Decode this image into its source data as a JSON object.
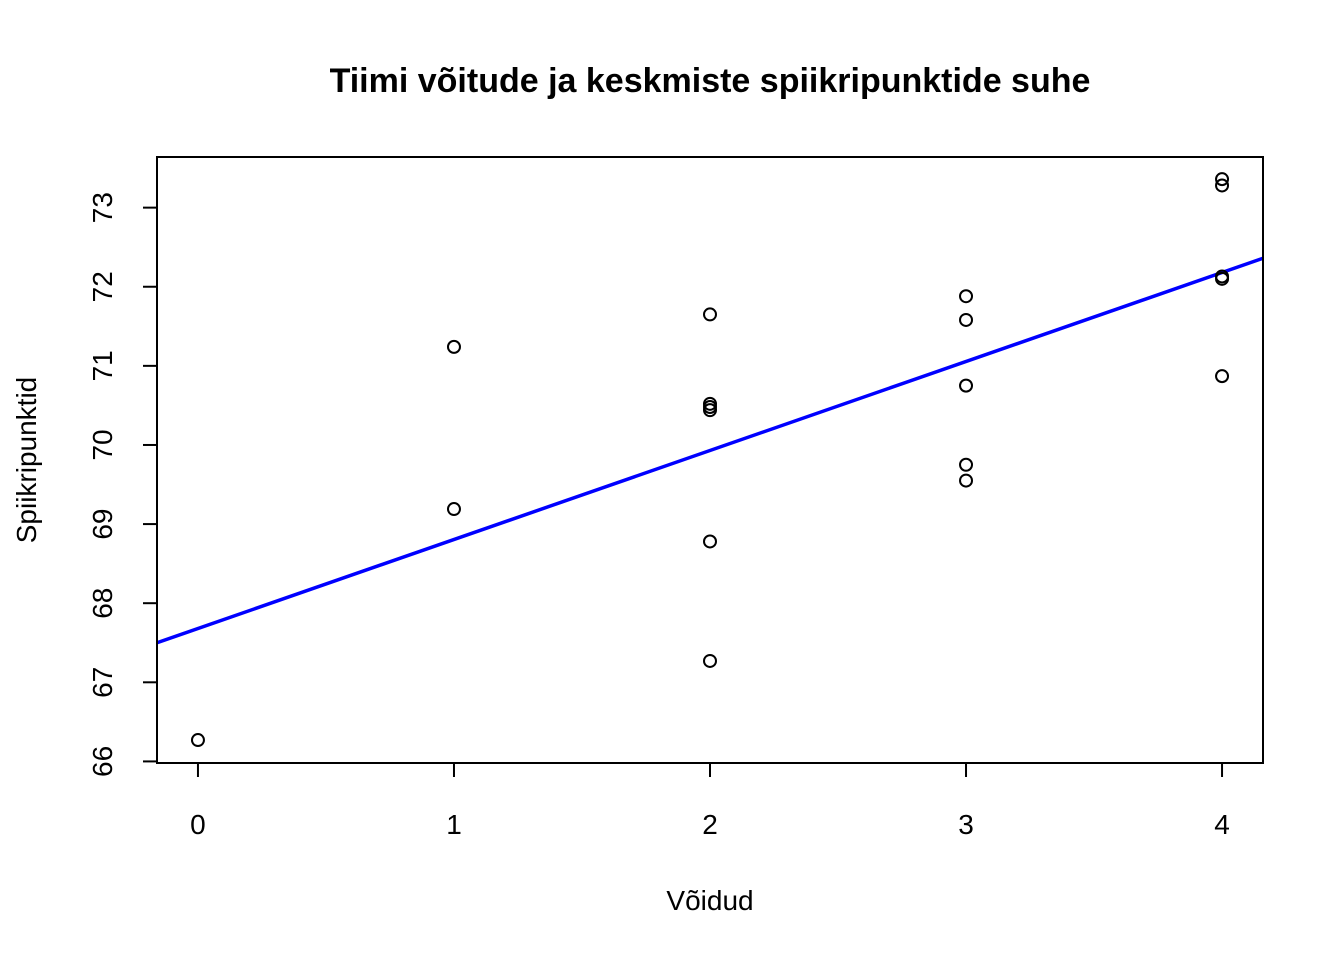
{
  "chart_data": {
    "type": "scatter",
    "title": "Tiimi võitude ja keskmiste spiikripunktide suhe",
    "xlabel": "Võidud",
    "ylabel": "Spiikripunktid",
    "xlim": [
      -0.16,
      4.16
    ],
    "ylim": [
      65.98,
      73.64
    ],
    "x_ticks": [
      "0",
      "1",
      "2",
      "3",
      "4"
    ],
    "y_ticks": [
      "66",
      "67",
      "68",
      "69",
      "70",
      "71",
      "72",
      "73"
    ],
    "grid": false,
    "legend": "none",
    "points": [
      {
        "x": 0,
        "y": 66.27
      },
      {
        "x": 1,
        "y": 71.24
      },
      {
        "x": 1,
        "y": 69.19
      },
      {
        "x": 2,
        "y": 71.65
      },
      {
        "x": 2,
        "y": 70.52
      },
      {
        "x": 2,
        "y": 70.48
      },
      {
        "x": 2,
        "y": 70.44
      },
      {
        "x": 2,
        "y": 68.78
      },
      {
        "x": 2,
        "y": 67.27
      },
      {
        "x": 3,
        "y": 71.88
      },
      {
        "x": 3,
        "y": 71.58
      },
      {
        "x": 3,
        "y": 70.75
      },
      {
        "x": 3,
        "y": 69.75
      },
      {
        "x": 3,
        "y": 69.55
      },
      {
        "x": 4,
        "y": 73.36
      },
      {
        "x": 4,
        "y": 73.28
      },
      {
        "x": 4,
        "y": 72.13
      },
      {
        "x": 4,
        "y": 72.1
      },
      {
        "x": 4,
        "y": 70.87
      }
    ],
    "regression_line": {
      "intercept": 67.68,
      "slope": 1.125,
      "color": "#0000FF"
    },
    "point_color": "#000000"
  }
}
